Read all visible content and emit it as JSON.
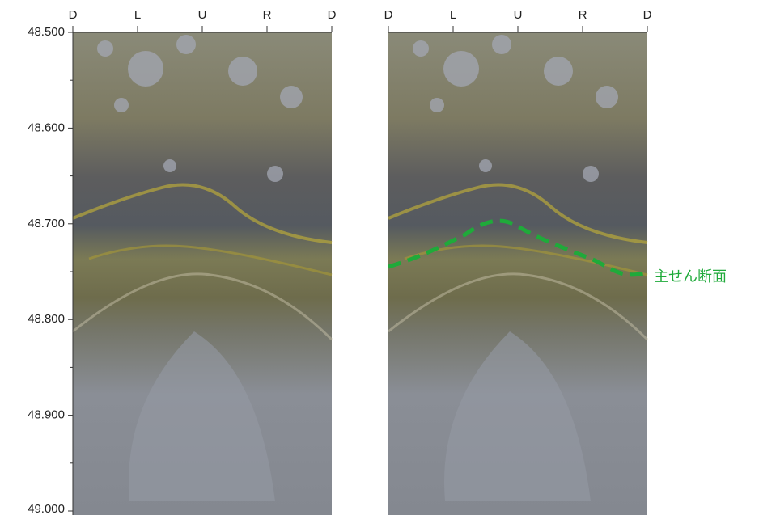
{
  "depth_axis": {
    "ticks": [
      "48.500",
      "48.600",
      "48.700",
      "48.800",
      "48.900",
      "49.000"
    ]
  },
  "direction_labels": [
    "D",
    "L",
    "U",
    "R",
    "D"
  ],
  "annotation": "主せん断面"
}
